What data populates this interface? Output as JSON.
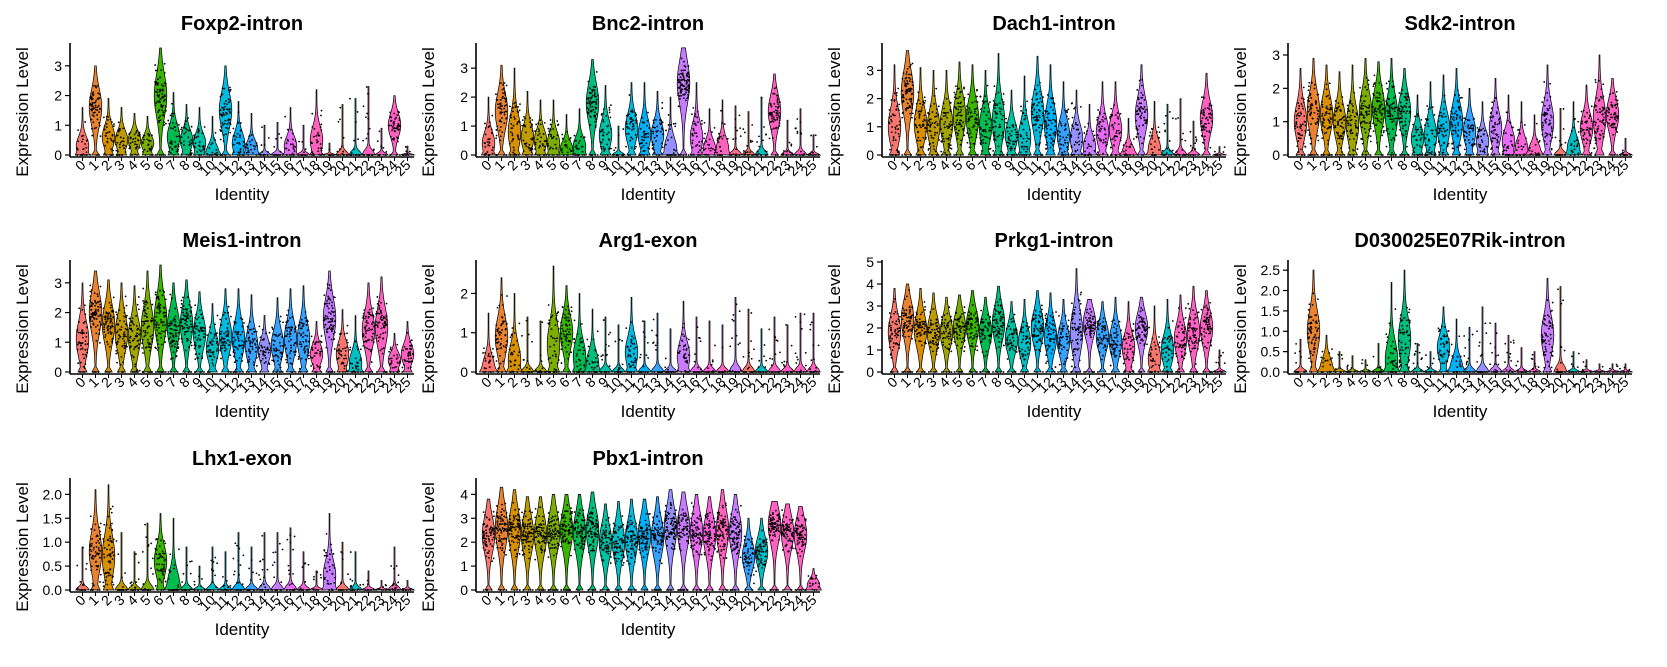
{
  "figure": {
    "ylabel": "Expression Level",
    "xlabel": "Identity"
  },
  "chart_data": [
    {
      "type": "violin",
      "title": "Foxp2-intron",
      "xlabel": "Identity",
      "ylabel": "Expression Level",
      "categories": [
        "0",
        "1",
        "2",
        "3",
        "4",
        "5",
        "6",
        "7",
        "8",
        "9",
        "10",
        "11",
        "12",
        "13",
        "14",
        "15",
        "16",
        "17",
        "18",
        "19",
        "20",
        "21",
        "22",
        "23",
        "24",
        "25"
      ],
      "yticks": [
        0,
        1,
        2,
        3
      ],
      "ylim": [
        0,
        3.7
      ],
      "max_values": [
        1.6,
        3.0,
        1.9,
        1.6,
        1.4,
        1.3,
        3.6,
        2.1,
        1.7,
        1.6,
        1.3,
        3.0,
        1.8,
        1.4,
        1.0,
        1.1,
        1.6,
        1.0,
        2.2,
        0.4,
        1.7,
        1.9,
        2.3,
        0.9,
        2.0,
        0.3
      ],
      "median_values": [
        0.3,
        1.6,
        0.6,
        0.5,
        0.5,
        0.4,
        2.0,
        0.6,
        0.5,
        0.4,
        0.1,
        1.5,
        0.4,
        0.2,
        0.0,
        0.0,
        0.3,
        0.0,
        0.5,
        0.0,
        0.0,
        0.0,
        0.0,
        0.0,
        1.0,
        0.0
      ],
      "colors": [
        "#F8766D",
        "#EA8331",
        "#D89000",
        "#C09B00",
        "#A3A500",
        "#7CAE00",
        "#39B600",
        "#00BB4E",
        "#00BF7D",
        "#00C1A3",
        "#00BFC4",
        "#00BAE0",
        "#00B0F6",
        "#35A2FF",
        "#9590FF",
        "#C77CFF",
        "#E76BF3",
        "#FA62DB",
        "#FF62BC",
        "#FF6C91",
        "#F8766D",
        "#00BFC4",
        "#FF61C3",
        "#FF61C3",
        "#FF61C3",
        "#FF61C3"
      ]
    },
    {
      "type": "violin",
      "title": "Bnc2-intron",
      "xlabel": "Identity",
      "ylabel": "Expression Level",
      "categories": [
        "0",
        "1",
        "2",
        "3",
        "4",
        "5",
        "6",
        "7",
        "8",
        "9",
        "10",
        "11",
        "12",
        "13",
        "14",
        "15",
        "16",
        "17",
        "18",
        "19",
        "20",
        "21",
        "22",
        "23",
        "24",
        "25"
      ],
      "yticks": [
        0,
        1,
        2,
        3
      ],
      "ylim": [
        0,
        3.8
      ],
      "max_values": [
        2.0,
        3.1,
        3.0,
        2.2,
        1.9,
        1.9,
        1.4,
        1.6,
        3.3,
        2.4,
        1.0,
        2.5,
        2.5,
        2.2,
        2.0,
        3.7,
        2.5,
        1.6,
        1.9,
        1.7,
        1.5,
        2.0,
        2.8,
        1.2,
        1.6,
        0.7
      ],
      "median_values": [
        0.4,
        1.5,
        0.8,
        0.6,
        0.5,
        0.4,
        0.2,
        0.3,
        1.8,
        0.7,
        0.0,
        0.9,
        0.7,
        0.7,
        0.2,
        2.5,
        0.6,
        0.2,
        0.2,
        0.0,
        0.0,
        0.0,
        1.5,
        0.0,
        0.0,
        0.0
      ],
      "colors": [
        "#F8766D",
        "#EA8331",
        "#D89000",
        "#C09B00",
        "#A3A500",
        "#7CAE00",
        "#39B600",
        "#00BB4E",
        "#00BF7D",
        "#00C1A3",
        "#00BFC4",
        "#00BAE0",
        "#00B0F6",
        "#35A2FF",
        "#9590FF",
        "#C77CFF",
        "#E76BF3",
        "#FA62DB",
        "#FF62BC",
        "#FF6C91",
        "#F8766D",
        "#00BFC4",
        "#FF61C3",
        "#FF61C3",
        "#FF61C3",
        "#FF61C3"
      ]
    },
    {
      "type": "violin",
      "title": "Dach1-intron",
      "xlabel": "Identity",
      "ylabel": "Expression Level",
      "categories": [
        "0",
        "1",
        "2",
        "3",
        "4",
        "5",
        "6",
        "7",
        "8",
        "9",
        "10",
        "11",
        "12",
        "13",
        "14",
        "15",
        "16",
        "17",
        "18",
        "19",
        "20",
        "21",
        "22",
        "23",
        "24",
        "25"
      ],
      "yticks": [
        0,
        1,
        2,
        3
      ],
      "ylim": [
        0,
        3.9
      ],
      "max_values": [
        3.2,
        3.7,
        3.1,
        3.0,
        3.0,
        3.3,
        3.2,
        3.0,
        3.6,
        2.3,
        2.8,
        3.5,
        3.2,
        2.6,
        2.3,
        1.8,
        2.6,
        2.6,
        1.3,
        3.2,
        1.9,
        1.8,
        2.0,
        1.2,
        2.9,
        0.3
      ],
      "median_values": [
        1.0,
        2.2,
        1.1,
        1.0,
        1.1,
        1.4,
        1.3,
        1.0,
        1.2,
        0.7,
        0.6,
        1.5,
        1.1,
        0.7,
        0.6,
        0.3,
        0.8,
        0.9,
        0.1,
        1.4,
        0.2,
        0.0,
        0.0,
        0.0,
        1.3,
        0.0
      ],
      "colors": [
        "#F8766D",
        "#EA8331",
        "#D89000",
        "#C09B00",
        "#A3A500",
        "#7CAE00",
        "#39B600",
        "#00BB4E",
        "#00BF7D",
        "#00C1A3",
        "#00BFC4",
        "#00BAE0",
        "#00B0F6",
        "#35A2FF",
        "#9590FF",
        "#C77CFF",
        "#E76BF3",
        "#FA62DB",
        "#FF62BC",
        "#C77CFF",
        "#F8766D",
        "#00BFC4",
        "#FF61C3",
        "#FF61C3",
        "#FF61C3",
        "#FF61C3"
      ]
    },
    {
      "type": "violin",
      "title": "Sdk2-intron",
      "xlabel": "Identity",
      "ylabel": "Expression Level",
      "categories": [
        "0",
        "1",
        "2",
        "3",
        "4",
        "5",
        "6",
        "7",
        "8",
        "9",
        "10",
        "11",
        "12",
        "13",
        "14",
        "15",
        "16",
        "17",
        "18",
        "19",
        "20",
        "21",
        "22",
        "23",
        "24",
        "25"
      ],
      "yticks": [
        0,
        1,
        2,
        3
      ],
      "ylim": [
        0,
        3.3
      ],
      "max_values": [
        2.6,
        2.9,
        2.7,
        2.5,
        2.7,
        2.9,
        2.8,
        2.9,
        2.6,
        1.8,
        2.2,
        2.4,
        2.6,
        2.0,
        1.6,
        2.3,
        1.8,
        1.6,
        1.2,
        2.7,
        1.4,
        1.6,
        2.1,
        3.0,
        2.3,
        0.5
      ],
      "median_values": [
        1.0,
        1.3,
        1.2,
        1.0,
        0.9,
        1.3,
        1.4,
        1.2,
        1.3,
        0.5,
        0.6,
        0.8,
        1.0,
        0.7,
        0.4,
        0.8,
        0.4,
        0.2,
        0.1,
        1.0,
        0.0,
        0.2,
        0.8,
        1.1,
        1.2,
        0.0
      ],
      "colors": [
        "#F8766D",
        "#EA8331",
        "#D89000",
        "#C09B00",
        "#A3A500",
        "#7CAE00",
        "#39B600",
        "#00BB4E",
        "#00BF7D",
        "#00C1A3",
        "#00BFC4",
        "#00BAE0",
        "#00B0F6",
        "#35A2FF",
        "#9590FF",
        "#C77CFF",
        "#E76BF3",
        "#FA62DB",
        "#FF62BC",
        "#C77CFF",
        "#F8766D",
        "#00BFC4",
        "#FF61C3",
        "#FF61C3",
        "#FF61C3",
        "#FF61C3"
      ]
    },
    {
      "type": "violin",
      "title": "Meis1-intron",
      "xlabel": "Identity",
      "ylabel": "Expression Level",
      "categories": [
        "0",
        "1",
        "2",
        "3",
        "4",
        "5",
        "6",
        "7",
        "8",
        "9",
        "10",
        "11",
        "12",
        "13",
        "14",
        "15",
        "16",
        "17",
        "18",
        "19",
        "20",
        "21",
        "22",
        "23",
        "24",
        "25"
      ],
      "yticks": [
        0,
        1,
        2,
        3
      ],
      "ylim": [
        0,
        3.7
      ],
      "max_values": [
        3.0,
        3.4,
        3.1,
        3.0,
        2.9,
        3.4,
        3.6,
        3.0,
        3.1,
        2.7,
        2.3,
        2.8,
        2.8,
        2.6,
        1.9,
        2.5,
        2.8,
        2.9,
        1.7,
        3.4,
        2.1,
        1.9,
        3.0,
        3.2,
        1.3,
        1.7
      ],
      "median_values": [
        1.1,
        2.0,
        1.6,
        1.3,
        1.2,
        1.5,
        1.8,
        1.5,
        1.6,
        1.3,
        0.8,
        1.2,
        1.1,
        0.9,
        0.7,
        0.9,
        1.1,
        1.1,
        0.6,
        1.8,
        0.6,
        0.3,
        1.4,
        1.5,
        0.4,
        0.6
      ],
      "colors": [
        "#F8766D",
        "#EA8331",
        "#D89000",
        "#C09B00",
        "#A3A500",
        "#7CAE00",
        "#39B600",
        "#00BB4E",
        "#00BF7D",
        "#00C1A3",
        "#00BFC4",
        "#00BAE0",
        "#00B0F6",
        "#35A2FF",
        "#9590FF",
        "#35A2FF",
        "#35A2FF",
        "#35A2FF",
        "#FF62BC",
        "#C77CFF",
        "#F8766D",
        "#00BFC4",
        "#FF61C3",
        "#FF61C3",
        "#FF61C3",
        "#FF61C3"
      ]
    },
    {
      "type": "violin",
      "title": "Arg1-exon",
      "xlabel": "Identity",
      "ylabel": "Expression Level",
      "categories": [
        "0",
        "1",
        "2",
        "3",
        "4",
        "5",
        "6",
        "7",
        "8",
        "9",
        "10",
        "11",
        "12",
        "13",
        "14",
        "15",
        "16",
        "17",
        "18",
        "19",
        "20",
        "21",
        "22",
        "23",
        "24",
        "25"
      ],
      "yticks": [
        0,
        1,
        2
      ],
      "ylim": [
        0,
        2.8
      ],
      "max_values": [
        1.5,
        2.4,
        2.0,
        1.4,
        1.3,
        2.7,
        2.2,
        2.0,
        1.6,
        1.4,
        1.2,
        1.9,
        1.3,
        1.5,
        1.1,
        1.8,
        1.4,
        1.3,
        1.2,
        1.9,
        1.6,
        1.1,
        1.4,
        1.2,
        1.5,
        1.5
      ],
      "median_values": [
        0.1,
        0.9,
        0.3,
        0.0,
        0.0,
        0.7,
        1.0,
        0.4,
        0.2,
        0.0,
        0.0,
        0.5,
        0.0,
        0.0,
        0.0,
        0.4,
        0.0,
        0.0,
        0.0,
        0.0,
        0.0,
        0.0,
        0.0,
        0.0,
        0.0,
        0.0
      ],
      "colors": [
        "#F8766D",
        "#EA8331",
        "#D89000",
        "#C09B00",
        "#A3A500",
        "#7CAE00",
        "#39B600",
        "#00BB4E",
        "#00BF7D",
        "#00C1A3",
        "#00BFC4",
        "#00BAE0",
        "#00B0F6",
        "#35A2FF",
        "#9590FF",
        "#C77CFF",
        "#E76BF3",
        "#FA62DB",
        "#FF62BC",
        "#C77CFF",
        "#F8766D",
        "#00BFC4",
        "#FF61C3",
        "#FF61C3",
        "#FF61C3",
        "#FF61C3"
      ]
    },
    {
      "type": "violin",
      "title": "Prkg1-intron",
      "xlabel": "Identity",
      "ylabel": "Expression Level",
      "categories": [
        "0",
        "1",
        "2",
        "3",
        "4",
        "5",
        "6",
        "7",
        "8",
        "9",
        "10",
        "11",
        "12",
        "13",
        "14",
        "15",
        "16",
        "17",
        "18",
        "19",
        "20",
        "21",
        "22",
        "23",
        "24",
        "25"
      ],
      "yticks": [
        0,
        1,
        2,
        3,
        4,
        5
      ],
      "ylim": [
        0,
        5
      ],
      "max_values": [
        3.8,
        4.0,
        3.8,
        3.6,
        3.4,
        3.5,
        3.7,
        3.4,
        3.9,
        3.2,
        3.3,
        3.7,
        3.6,
        3.3,
        4.7,
        3.3,
        3.2,
        3.4,
        3.2,
        3.4,
        3.0,
        3.3,
        3.5,
        3.9,
        3.7,
        1.0
      ],
      "median_values": [
        1.8,
        2.4,
        1.9,
        1.8,
        1.8,
        2.0,
        2.1,
        1.8,
        2.2,
        1.5,
        1.3,
        2.0,
        1.6,
        1.4,
        1.8,
        2.2,
        1.6,
        1.4,
        1.1,
        2.0,
        0.6,
        1.0,
        1.5,
        1.8,
        2.0,
        0.0
      ],
      "colors": [
        "#F8766D",
        "#EA8331",
        "#D89000",
        "#C09B00",
        "#A3A500",
        "#7CAE00",
        "#39B600",
        "#00BB4E",
        "#00BF7D",
        "#00C1A3",
        "#00BFC4",
        "#00BAE0",
        "#00B0F6",
        "#35A2FF",
        "#9590FF",
        "#C77CFF",
        "#35A2FF",
        "#35A2FF",
        "#FF62BC",
        "#C77CFF",
        "#F8766D",
        "#00BFC4",
        "#FF61C3",
        "#FF61C3",
        "#FF61C3",
        "#FF61C3"
      ]
    },
    {
      "type": "violin",
      "title": "D030025E07Rik-intron",
      "xlabel": "Identity",
      "ylabel": "Expression Level",
      "categories": [
        "0",
        "1",
        "2",
        "3",
        "4",
        "5",
        "6",
        "7",
        "8",
        "9",
        "10",
        "11",
        "12",
        "13",
        "14",
        "15",
        "16",
        "17",
        "18",
        "19",
        "20",
        "21",
        "22",
        "23",
        "24",
        "25"
      ],
      "yticks": [
        0.0,
        0.5,
        1.0,
        1.5,
        2.0,
        2.5
      ],
      "ylim": [
        0,
        2.7
      ],
      "max_values": [
        0.8,
        2.5,
        0.9,
        0.5,
        0.4,
        0.3,
        0.7,
        2.2,
        2.5,
        0.7,
        0.5,
        1.6,
        1.3,
        1.1,
        1.6,
        1.2,
        0.9,
        0.6,
        0.5,
        2.3,
        2.1,
        0.5,
        0.3,
        0.2,
        0.2,
        0.2
      ],
      "median_values": [
        0.0,
        1.0,
        0.1,
        0.0,
        0.0,
        0.0,
        0.0,
        0.3,
        0.8,
        0.0,
        0.0,
        0.6,
        0.1,
        0.0,
        0.0,
        0.0,
        0.0,
        0.0,
        0.0,
        0.9,
        0.0,
        0.0,
        0.0,
        0.0,
        0.0,
        0.0
      ],
      "colors": [
        "#F8766D",
        "#EA8331",
        "#D89000",
        "#C09B00",
        "#A3A500",
        "#7CAE00",
        "#39B600",
        "#00BB4E",
        "#00BF7D",
        "#00C1A3",
        "#00BFC4",
        "#00BAE0",
        "#00B0F6",
        "#35A2FF",
        "#9590FF",
        "#C77CFF",
        "#E76BF3",
        "#FA62DB",
        "#FF62BC",
        "#C77CFF",
        "#F8766D",
        "#00BFC4",
        "#FF61C3",
        "#FF61C3",
        "#FF61C3",
        "#FF61C3"
      ]
    },
    {
      "type": "violin",
      "title": "Lhx1-exon",
      "xlabel": "Identity",
      "ylabel": "Expression Level",
      "categories": [
        "0",
        "1",
        "2",
        "3",
        "4",
        "5",
        "6",
        "7",
        "8",
        "9",
        "10",
        "11",
        "12",
        "13",
        "14",
        "15",
        "16",
        "17",
        "18",
        "19",
        "20",
        "21",
        "22",
        "23",
        "24",
        "25"
      ],
      "yticks": [
        0.0,
        0.5,
        1.0,
        1.5,
        2.0
      ],
      "ylim": [
        0,
        2.3
      ],
      "max_values": [
        0.9,
        2.1,
        2.2,
        1.2,
        0.8,
        1.4,
        1.6,
        1.5,
        0.9,
        0.5,
        0.9,
        0.8,
        1.2,
        0.9,
        1.2,
        1.2,
        1.3,
        0.8,
        0.4,
        1.6,
        1.0,
        0.8,
        0.4,
        0.2,
        0.9,
        0.2
      ],
      "median_values": [
        0.0,
        0.8,
        0.7,
        0.0,
        0.0,
        0.0,
        0.6,
        0.1,
        0.0,
        0.0,
        0.0,
        0.0,
        0.0,
        0.0,
        0.0,
        0.0,
        0.0,
        0.0,
        0.0,
        0.3,
        0.0,
        0.0,
        0.0,
        0.0,
        0.0,
        0.0
      ],
      "colors": [
        "#F8766D",
        "#EA8331",
        "#D89000",
        "#C09B00",
        "#A3A500",
        "#7CAE00",
        "#39B600",
        "#00BB4E",
        "#00BF7D",
        "#00C1A3",
        "#00BFC4",
        "#00BAE0",
        "#00B0F6",
        "#35A2FF",
        "#9590FF",
        "#C77CFF",
        "#E76BF3",
        "#FA62DB",
        "#FF62BC",
        "#C77CFF",
        "#F8766D",
        "#00BFC4",
        "#FF61C3",
        "#FF61C3",
        "#FF61C3",
        "#FF61C3"
      ]
    },
    {
      "type": "violin",
      "title": "Pbx1-intron",
      "xlabel": "Identity",
      "ylabel": "Expression Level",
      "categories": [
        "0",
        "1",
        "2",
        "3",
        "4",
        "5",
        "6",
        "7",
        "8",
        "9",
        "10",
        "11",
        "12",
        "13",
        "14",
        "15",
        "16",
        "17",
        "18",
        "19",
        "20",
        "21",
        "22",
        "23",
        "24",
        "25"
      ],
      "yticks": [
        0,
        1,
        2,
        3,
        4
      ],
      "ylim": [
        0,
        4.6
      ],
      "max_values": [
        3.8,
        4.3,
        4.2,
        3.9,
        3.9,
        4.0,
        4.0,
        4.0,
        4.1,
        3.6,
        3.7,
        3.8,
        3.8,
        3.9,
        4.2,
        4.1,
        4.0,
        3.9,
        4.2,
        4.0,
        3.0,
        3.0,
        3.7,
        3.6,
        3.5,
        0.9
      ],
      "median_values": [
        2.3,
        2.6,
        2.5,
        2.3,
        2.3,
        2.4,
        2.5,
        2.4,
        2.5,
        2.0,
        2.0,
        2.1,
        2.3,
        2.2,
        2.6,
        2.6,
        2.4,
        2.3,
        2.5,
        2.4,
        1.4,
        1.6,
        2.7,
        2.4,
        2.3,
        0.2
      ],
      "colors": [
        "#F8766D",
        "#EA8331",
        "#D89000",
        "#C09B00",
        "#A3A500",
        "#7CAE00",
        "#39B600",
        "#00BB4E",
        "#00BF7D",
        "#00C1A3",
        "#00BFC4",
        "#00BAE0",
        "#00B0F6",
        "#35A2FF",
        "#9590FF",
        "#C77CFF",
        "#E76BF3",
        "#FA62DB",
        "#FF62BC",
        "#C77CFF",
        "#35A2FF",
        "#00BFC4",
        "#FF61C3",
        "#FF61C3",
        "#FF61C3",
        "#FF61C3"
      ]
    }
  ]
}
